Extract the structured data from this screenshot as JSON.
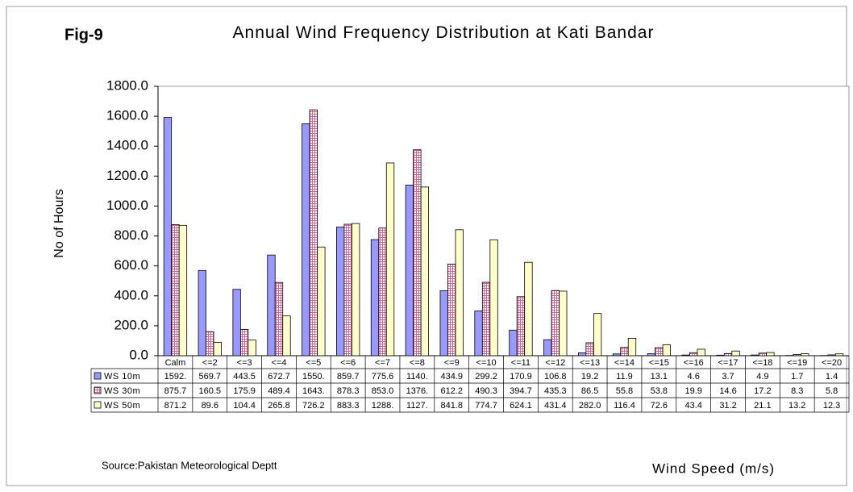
{
  "chart_data": {
    "type": "bar",
    "fig_label": "Fig-9",
    "title": "Annual Wind Frequency Distribution at Kati Bandar",
    "y_label": "No of Hours",
    "x_label": "Wind Speed (m/s)",
    "source": "Source:Pakistan Meteorological Deptt",
    "categories": [
      "Calm",
      "<=2",
      "<=3",
      "<=4",
      "<=5",
      "<=6",
      "<=7",
      "<=8",
      "<=9",
      "<=10",
      "<=11",
      "<=12",
      "<=13",
      "<=14",
      "<=15",
      "<=16",
      "<=17",
      "<=18",
      "<=19",
      "<=20"
    ],
    "series": [
      {
        "name": "WS 10m",
        "color": "#9999ff",
        "values": [
          1592,
          569.7,
          443.5,
          672.7,
          1550,
          859.7,
          775.6,
          1140,
          434.9,
          299.2,
          170.9,
          106.8,
          19.2,
          11.9,
          13.1,
          4.6,
          3.7,
          4.9,
          1.7,
          1.4
        ],
        "value_labels": [
          "1592.",
          "569.7",
          "443.5",
          "672.7",
          "1550.",
          "859.7",
          "775.6",
          "1140.",
          "434.9",
          "299.2",
          "170.9",
          "106.8",
          "19.2",
          "11.9",
          "13.1",
          "4.6",
          "3.7",
          "4.9",
          "1.7",
          "1.4"
        ]
      },
      {
        "name": "WS 30m",
        "color": "#cc6699",
        "values": [
          875.7,
          160.5,
          175.9,
          489.4,
          1643,
          878.3,
          853,
          1376,
          612.2,
          490.3,
          394.7,
          435.3,
          86.5,
          55.8,
          53.8,
          19.9,
          14.6,
          17.2,
          8.3,
          5.8
        ],
        "value_labels": [
          "875.7",
          "160.5",
          "175.9",
          "489.4",
          "1643.",
          "878.3",
          "853.0",
          "1376.",
          "612.2",
          "490.3",
          "394.7",
          "435.3",
          "86.5",
          "55.8",
          "53.8",
          "19.9",
          "14.6",
          "17.2",
          "8.3",
          "5.8"
        ]
      },
      {
        "name": "WS 50m",
        "color": "#ffffcc",
        "values": [
          871.2,
          89.6,
          104.4,
          265.8,
          726.2,
          883.3,
          1288,
          1127,
          841.8,
          774.7,
          624.1,
          431.4,
          282,
          116.4,
          72.6,
          43.4,
          31.2,
          21.1,
          13.2,
          12.3
        ],
        "value_labels": [
          "871.2",
          "89.6",
          "104.4",
          "265.8",
          "726.2",
          "883.3",
          "1288.",
          "1127.",
          "841.8",
          "774.7",
          "624.1",
          "431.4",
          "282.0",
          "116.4",
          "72.6",
          "43.4",
          "31.2",
          "21.1",
          "13.2",
          "12.3"
        ]
      }
    ],
    "ylim": [
      0,
      1800
    ],
    "yticks": [
      {
        "value": 0,
        "label": "0.0"
      },
      {
        "value": 200,
        "label": "200.0"
      },
      {
        "value": 400,
        "label": "400.0"
      },
      {
        "value": 600,
        "label": "600.0"
      },
      {
        "value": 800,
        "label": "800.0"
      },
      {
        "value": 1000,
        "label": "1000.0"
      },
      {
        "value": 1200,
        "label": "1200.0"
      },
      {
        "value": 1400,
        "label": "1400.0"
      },
      {
        "value": 1600,
        "label": "1600.0"
      },
      {
        "value": 1800,
        "label": "1800.0"
      }
    ],
    "grid": false
  }
}
